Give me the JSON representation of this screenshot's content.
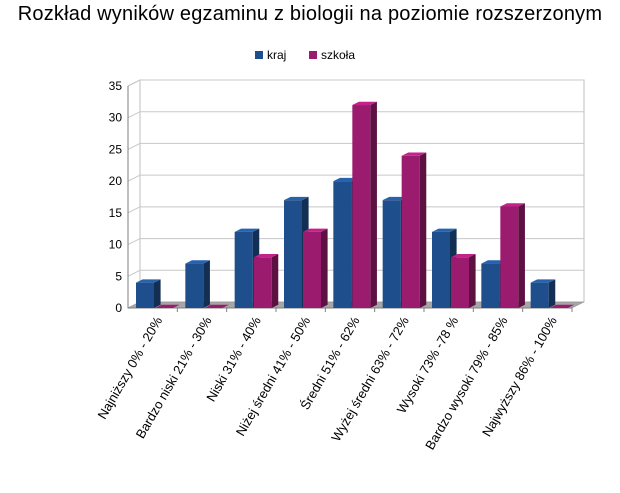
{
  "chart_data": {
    "type": "bar",
    "title": "Rozkład wyników egzaminu z biologii na poziomie rozszerzonym",
    "xlabel": "",
    "ylabel": "",
    "ylim": [
      0,
      35
    ],
    "yticks": [
      0,
      5,
      10,
      15,
      20,
      25,
      30,
      35
    ],
    "grid": true,
    "legend_position": "top",
    "three_d": true,
    "categories": [
      "Najniższy 0% - 20%",
      "Bardzo niski 21% - 30%",
      "Niski 31% - 40%",
      "Niżej średni 41% - 50%",
      "Średni 51% - 62%",
      "Wyżej średni 63% - 72%",
      "Wysoki 73% -78 %",
      "Bardzo wysoki 79% - 85%",
      "Najwyższy 86% - 100%"
    ],
    "series": [
      {
        "name": "kraj",
        "color": "#1f4e8c",
        "values": [
          4,
          7,
          12,
          17,
          20,
          17,
          12,
          7,
          4
        ]
      },
      {
        "name": "szkoła",
        "color": "#9b1b6e",
        "values": [
          0,
          0,
          8,
          12,
          32,
          24,
          8,
          16,
          0
        ]
      }
    ]
  }
}
